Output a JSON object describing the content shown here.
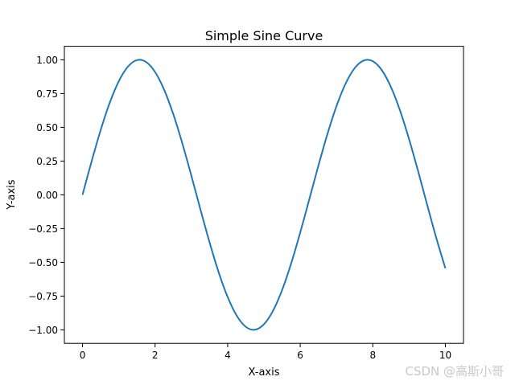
{
  "chart_data": {
    "type": "line",
    "title": "Simple Sine Curve",
    "xlabel": "X-axis",
    "ylabel": "Y-axis",
    "xlim": [
      -0.5,
      10.5
    ],
    "ylim": [
      -1.1,
      1.1
    ],
    "xticks": [
      "0",
      "2",
      "4",
      "6",
      "8",
      "10"
    ],
    "yticks": [
      "−1.00",
      "−0.75",
      "−0.50",
      "−0.25",
      "0.00",
      "0.25",
      "0.50",
      "0.75",
      "1.00"
    ],
    "grid": false,
    "series": [
      {
        "color": "#1f77b4",
        "x": [
          0,
          0.25,
          0.5,
          0.75,
          1,
          1.25,
          1.5,
          1.75,
          2,
          2.25,
          2.5,
          2.75,
          3,
          3.25,
          3.5,
          3.75,
          4,
          4.25,
          4.5,
          4.75,
          5,
          5.25,
          5.5,
          5.75,
          6,
          6.25,
          6.5,
          6.75,
          7,
          7.25,
          7.5,
          7.75,
          8,
          8.25,
          8.5,
          8.75,
          9,
          9.25,
          9.5,
          9.75,
          10
        ],
        "y": [
          0,
          0.2474,
          0.4794,
          0.6816,
          0.8415,
          0.949,
          0.9975,
          0.984,
          0.9093,
          0.7781,
          0.5985,
          0.3817,
          0.1411,
          -0.1082,
          -0.3508,
          -0.5716,
          -0.7568,
          -0.895,
          -0.9775,
          -0.9993,
          -0.9589,
          -0.8589,
          -0.7055,
          -0.5082,
          -0.2794,
          -0.0332,
          0.2151,
          0.45,
          0.657,
          0.8231,
          0.938,
          0.9946,
          0.9894,
          0.9227,
          0.7985,
          0.6247,
          0.4121,
          0.1743,
          -0.0752,
          -0.3195,
          -0.544
        ]
      }
    ]
  },
  "watermark": "CSDN @高斯小哥"
}
